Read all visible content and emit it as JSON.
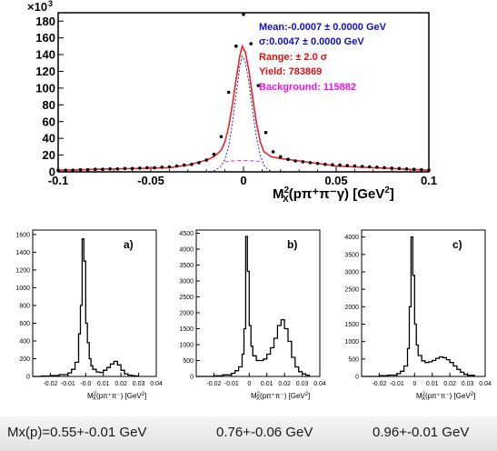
{
  "chart_data": [
    {
      "type": "scatter",
      "title": "",
      "xlabel": "M_X^2(pπ+π−γ) [GeV²]",
      "x_label_parts": {
        "main": "M",
        "sub": "X",
        "sup": "2",
        "rest": "(pπ⁺π⁻γ) [GeV",
        "unit_sup": "2",
        "close": "]"
      },
      "ylabel": "",
      "y_multiplier": "×10",
      "y_multiplier_exp": "3",
      "xlim": [
        -0.1,
        0.1
      ],
      "ylim": [
        0,
        190
      ],
      "x_ticks": [
        -0.1,
        -0.05,
        0,
        0.05,
        0.1
      ],
      "x_tick_labels": [
        "-0.1",
        "-0.05",
        "0",
        "0.05",
        "0.1"
      ],
      "y_ticks": [
        0,
        20,
        40,
        60,
        80,
        100,
        120,
        140,
        160,
        180
      ],
      "y_tick_labels": [
        "0",
        "20",
        "40",
        "60",
        "80",
        "100",
        "120",
        "140",
        "160",
        "180"
      ],
      "stats": {
        "mean": "Mean:-0.0007 ± 0.0000 GeV",
        "sigma": "σ:0.0047 ± 0.0000 GeV",
        "range": "Range: ± 2.0 σ",
        "yield": "Yield: 783869",
        "background": "Background: 115882"
      },
      "colors": {
        "stats_blue": "#1010cc",
        "stats_red": "#dd1111",
        "stats_magenta": "#ee11ee",
        "fit": "#ee2222",
        "gauss": "#2222cc",
        "bkg": "#dd22dd",
        "points": "#000000"
      },
      "series": [
        {
          "name": "data",
          "style": "points",
          "x": [
            -0.1,
            -0.096,
            -0.092,
            -0.088,
            -0.084,
            -0.08,
            -0.076,
            -0.072,
            -0.068,
            -0.064,
            -0.06,
            -0.056,
            -0.052,
            -0.048,
            -0.044,
            -0.04,
            -0.036,
            -0.032,
            -0.028,
            -0.024,
            -0.02,
            -0.016,
            -0.012,
            -0.008,
            -0.004,
            0,
            0.004,
            0.008,
            0.012,
            0.016,
            0.02,
            0.024,
            0.028,
            0.032,
            0.036,
            0.04,
            0.044,
            0.048,
            0.052,
            0.056,
            0.06,
            0.064,
            0.068,
            0.072,
            0.076,
            0.08,
            0.084,
            0.088,
            0.092,
            0.096,
            0.1
          ],
          "y": [
            2,
            2,
            2,
            2.5,
            2.5,
            3,
            3,
            3.5,
            3.5,
            4,
            4,
            4.5,
            5,
            5,
            5.5,
            6,
            7,
            8,
            9,
            11,
            14,
            21,
            42,
            95,
            150,
            188,
            153,
            103,
            47,
            24,
            18,
            15,
            13,
            12,
            11,
            10,
            9,
            8.5,
            8,
            7.5,
            7,
            6.5,
            6,
            5.5,
            5,
            4.5,
            4,
            3.5,
            3,
            2.5,
            2
          ]
        },
        {
          "name": "fit",
          "style": "line",
          "x": [
            -0.1,
            -0.04,
            -0.03,
            -0.02,
            -0.016,
            -0.012,
            -0.01,
            -0.008,
            -0.006,
            -0.004,
            -0.002,
            -0.0007,
            0.001,
            0.003,
            0.005,
            0.007,
            0.009,
            0.011,
            0.015,
            0.02,
            0.03,
            0.05,
            0.1
          ],
          "y": [
            2,
            5,
            8,
            14,
            18,
            26,
            36,
            54,
            80,
            110,
            138,
            150,
            143,
            120,
            88,
            58,
            36,
            24,
            18,
            16,
            13,
            7,
            2
          ]
        },
        {
          "name": "gaussian",
          "style": "dotted",
          "x": [
            -0.02,
            -0.016,
            -0.012,
            -0.01,
            -0.008,
            -0.006,
            -0.004,
            -0.002,
            -0.0007,
            0.001,
            0.003,
            0.005,
            0.007,
            0.009,
            0.011,
            0.013,
            0.016
          ],
          "y": [
            0,
            1,
            7,
            15,
            31,
            58,
            92,
            126,
            138,
            131,
            106,
            72,
            41,
            20,
            8,
            3,
            0
          ]
        },
        {
          "name": "background",
          "style": "dashed",
          "x": [
            -0.0101,
            -0.006,
            -0.002,
            0.002,
            0.006,
            0.0087
          ],
          "y": [
            12,
            13,
            13.5,
            13.5,
            13,
            12.5
          ]
        }
      ]
    },
    {
      "type": "line",
      "panel_label": "a)",
      "xlabel": "M_X^2(pπ+π−) [GeV²]",
      "xlim": [
        -0.03,
        0.04
      ],
      "ylim": [
        0,
        1650
      ],
      "x_ticks": [
        -0.02,
        -0.01,
        0,
        0.01,
        0.02,
        0.03,
        0.04
      ],
      "x_tick_labels": [
        "-0.02",
        "-0.01",
        "-0.0",
        "0.01",
        "0.02",
        "0.03",
        "0.04"
      ],
      "y_ticks": [
        0,
        200,
        400,
        600,
        800,
        1000,
        1200,
        1400,
        1600
      ],
      "y_tick_labels": [
        "0",
        "200",
        "400",
        "600",
        "800",
        "1000",
        "1200",
        "1400",
        "1600"
      ],
      "series": [
        {
          "name": "",
          "style": "step",
          "x": [
            -0.03,
            -0.025,
            -0.02,
            -0.015,
            -0.01,
            -0.008,
            -0.006,
            -0.004,
            -0.003,
            -0.002,
            -0.001,
            0,
            0.001,
            0.002,
            0.003,
            0.004,
            0.006,
            0.008,
            0.01,
            0.012,
            0.014,
            0.016,
            0.018,
            0.02,
            0.022,
            0.024,
            0.026,
            0.028,
            0.03
          ],
          "y": [
            0,
            5,
            10,
            20,
            40,
            80,
            160,
            480,
            800,
            1550,
            1300,
            600,
            380,
            200,
            120,
            80,
            50,
            45,
            70,
            100,
            140,
            170,
            130,
            70,
            30,
            15,
            8,
            5,
            0
          ]
        }
      ]
    },
    {
      "type": "line",
      "panel_label": "b)",
      "xlabel": "M_X^2(pπ+π−) [GeV²]",
      "xlim": [
        -0.03,
        0.04
      ],
      "ylim": [
        0,
        4600
      ],
      "x_ticks": [
        -0.02,
        -0.01,
        0,
        0.01,
        0.02,
        0.03,
        0.04
      ],
      "x_tick_labels": [
        "-0.02",
        "-0.01",
        "0",
        "0.01",
        "0.02",
        "0.03",
        "0.04"
      ],
      "y_ticks": [
        0,
        500,
        1000,
        1500,
        2000,
        2500,
        3000,
        3500,
        4000,
        4500
      ],
      "y_tick_labels": [
        "0",
        "500",
        "1000",
        "1500",
        "2000",
        "2500",
        "3000",
        "3500",
        "4000",
        "4500"
      ],
      "series": [
        {
          "name": "",
          "style": "step",
          "x": [
            -0.03,
            -0.02,
            -0.015,
            -0.01,
            -0.008,
            -0.006,
            -0.004,
            -0.003,
            -0.002,
            -0.001,
            0,
            0.001,
            0.002,
            0.004,
            0.006,
            0.008,
            0.01,
            0.012,
            0.014,
            0.016,
            0.018,
            0.02,
            0.022,
            0.024,
            0.026,
            0.028,
            0.03,
            0.032,
            0.034
          ],
          "y": [
            0,
            20,
            50,
            100,
            180,
            300,
            700,
            1500,
            4400,
            3300,
            1600,
            950,
            650,
            500,
            500,
            550,
            700,
            900,
            1200,
            1600,
            1780,
            1500,
            1100,
            600,
            300,
            150,
            80,
            40,
            0
          ]
        }
      ]
    },
    {
      "type": "line",
      "panel_label": "c)",
      "xlabel": "M_X^2(pπ+π−) [GeV²]",
      "xlim": [
        -0.03,
        0.04
      ],
      "ylim": [
        0,
        4200
      ],
      "x_ticks": [
        -0.02,
        -0.01,
        0,
        0.01,
        0.02,
        0.03,
        0.04
      ],
      "x_tick_labels": [
        "-0.02",
        "-0.01",
        "0",
        "0.01",
        "0.02",
        "0.03",
        "0.04"
      ],
      "y_ticks": [
        0,
        500,
        1000,
        1500,
        2000,
        2500,
        3000,
        3500,
        4000
      ],
      "y_tick_labels": [
        "0",
        "500",
        "1000",
        "1500",
        "2000",
        "2500",
        "3000",
        "3500",
        "4000"
      ],
      "series": [
        {
          "name": "",
          "style": "step",
          "x": [
            -0.03,
            -0.02,
            -0.015,
            -0.01,
            -0.008,
            -0.006,
            -0.004,
            -0.003,
            -0.002,
            -0.001,
            0,
            0.001,
            0.002,
            0.004,
            0.006,
            0.008,
            0.01,
            0.012,
            0.014,
            0.016,
            0.018,
            0.02,
            0.022,
            0.024,
            0.026,
            0.028,
            0.03,
            0.034
          ],
          "y": [
            0,
            20,
            40,
            80,
            150,
            300,
            800,
            2000,
            4000,
            2900,
            1500,
            900,
            600,
            450,
            400,
            420,
            460,
            520,
            560,
            540,
            480,
            400,
            300,
            200,
            120,
            60,
            30,
            0
          ]
        }
      ]
    }
  ],
  "captions": {
    "a": "Mx(p)=0.55+-0.01 GeV",
    "b": "0.76+-0.06 GeV",
    "c": "0.96+-0.01 GeV"
  }
}
